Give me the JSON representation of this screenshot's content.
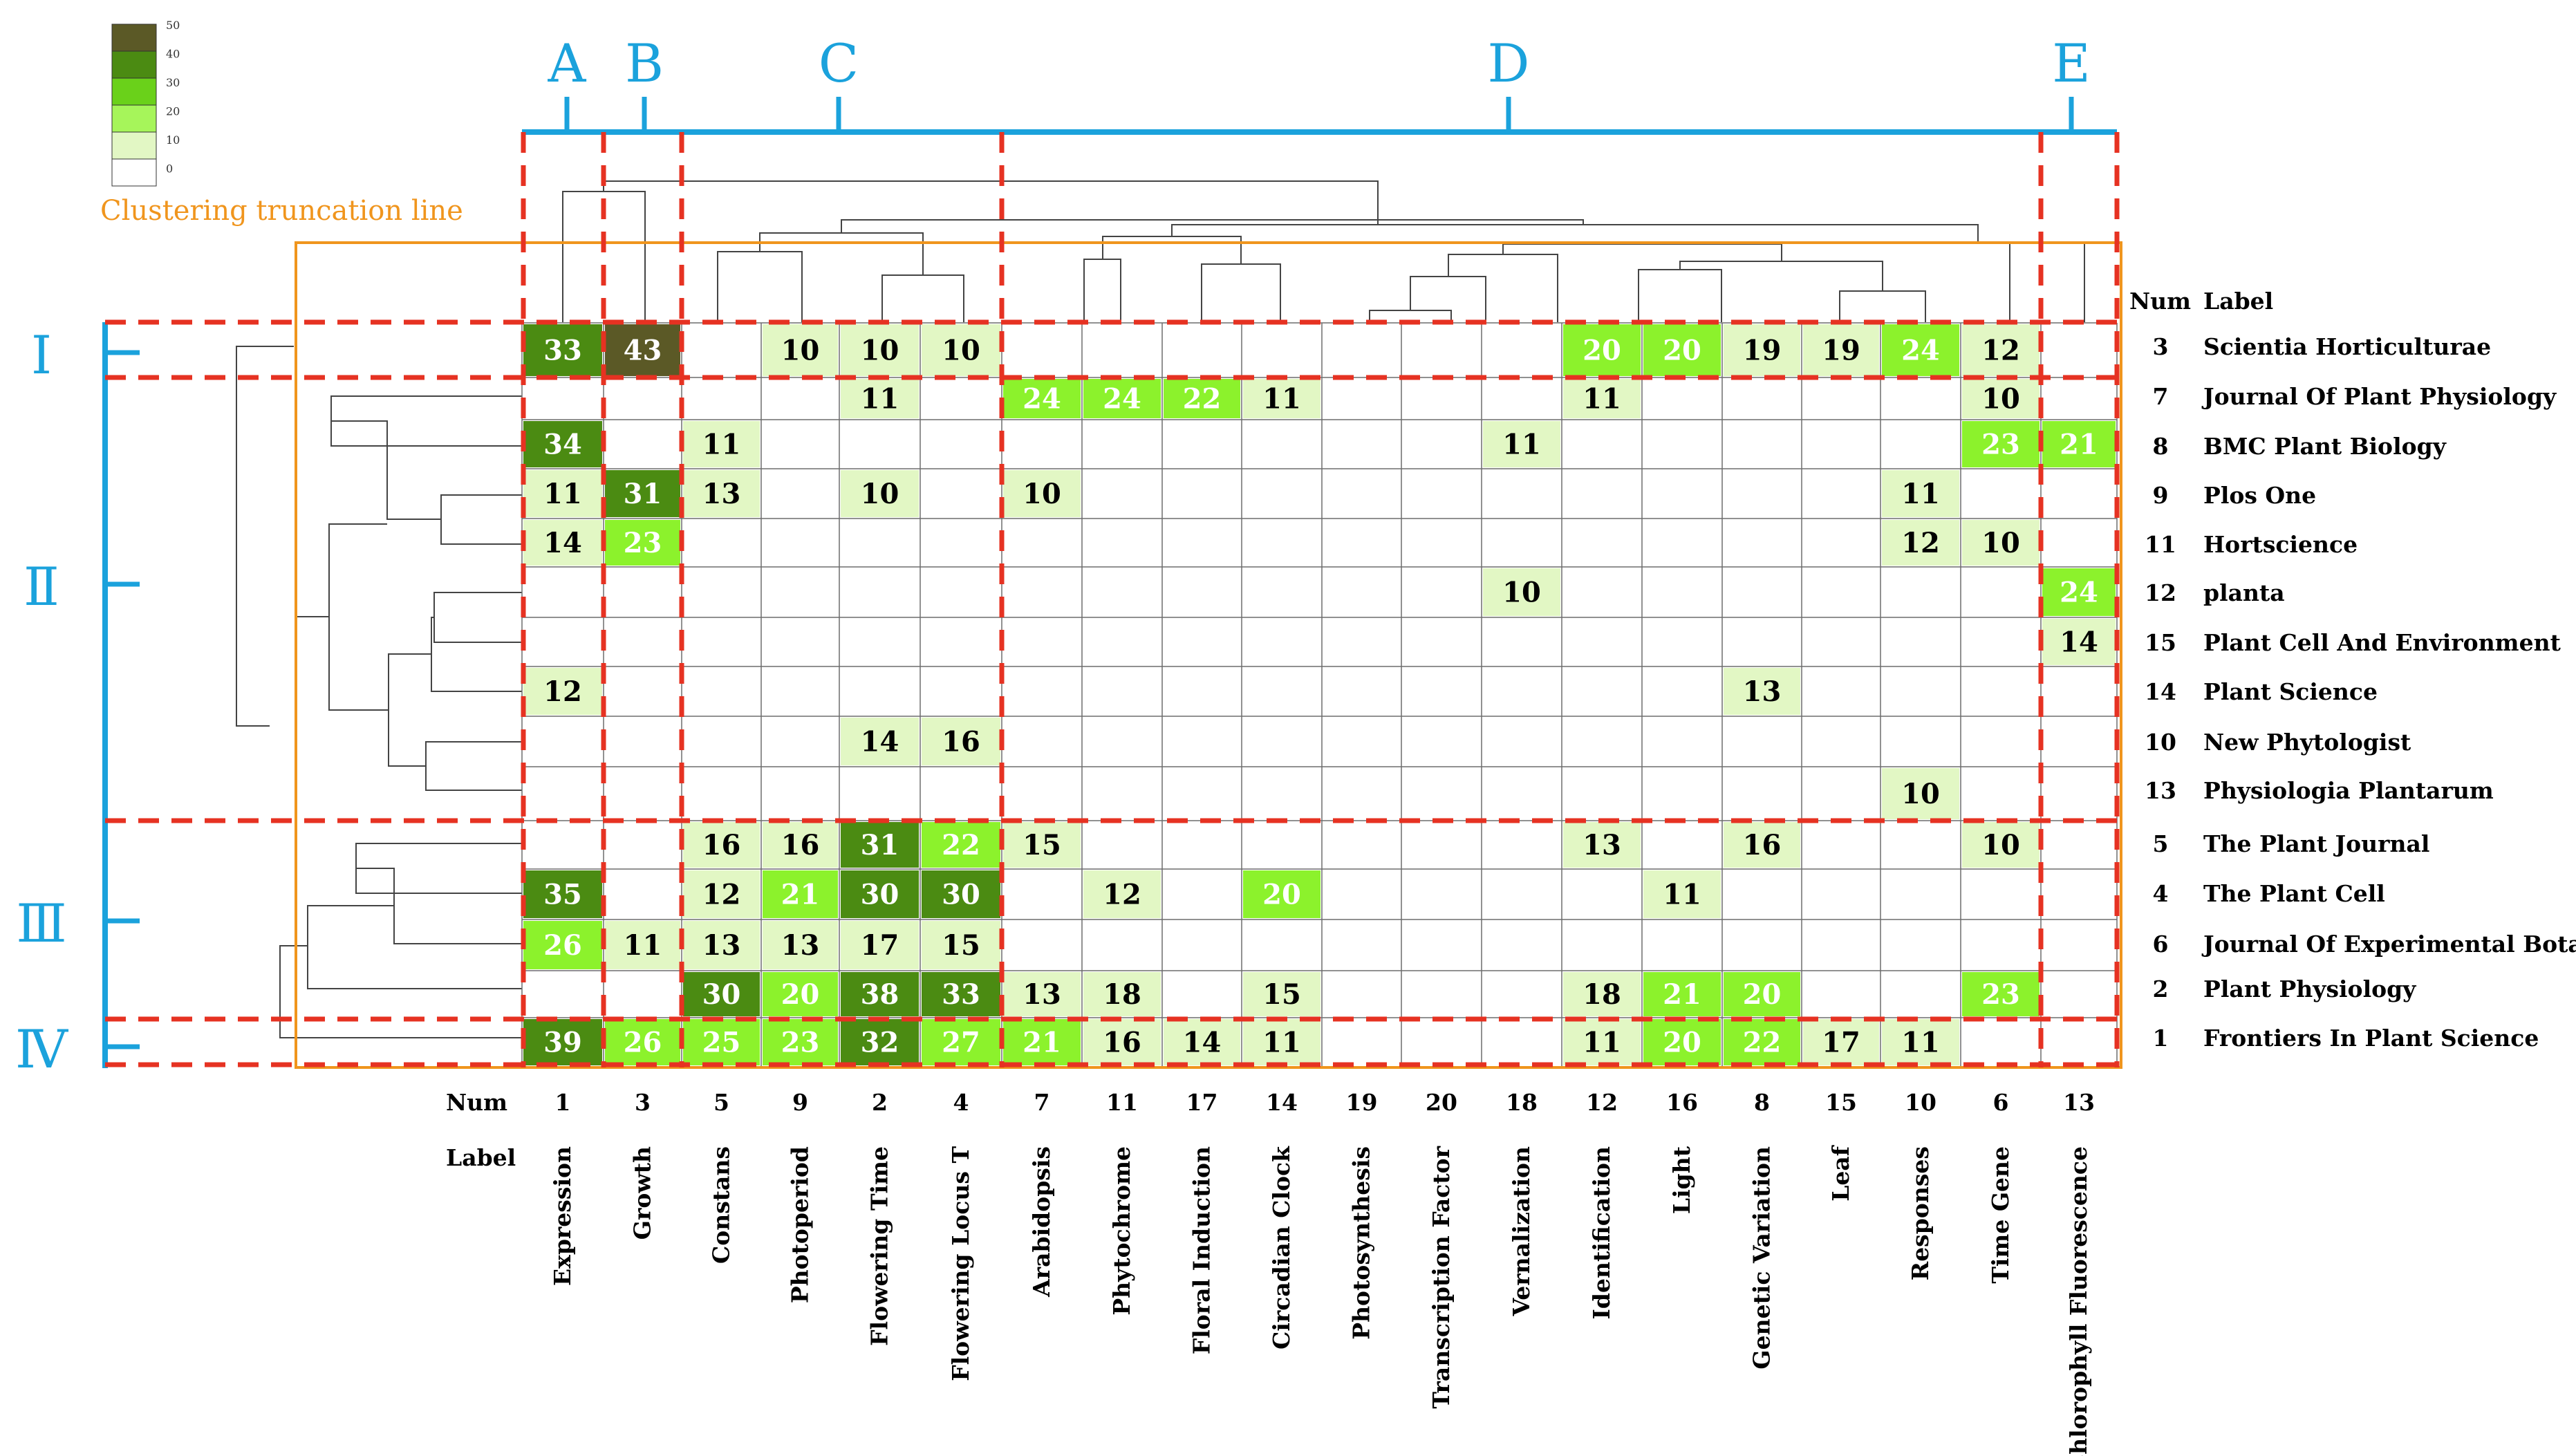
{
  "chart_data": {
    "type": "heatmap",
    "title": "",
    "truncation_label": "Clustering truncation line",
    "num_header": "Num",
    "label_header": "Label",
    "legend": {
      "ticks": [
        "50",
        "40",
        "30",
        "20",
        "10",
        "0"
      ]
    },
    "column_groups": [
      "A",
      "B",
      "C",
      "D",
      "E"
    ],
    "row_groups": [
      "Ⅰ",
      "Ⅱ",
      "Ⅲ",
      "Ⅳ"
    ],
    "columns": [
      {
        "num": "1",
        "label": "Expression"
      },
      {
        "num": "3",
        "label": "Growth"
      },
      {
        "num": "5",
        "label": "Constans"
      },
      {
        "num": "9",
        "label": "Photoperiod"
      },
      {
        "num": "2",
        "label": "Flowering Time"
      },
      {
        "num": "4",
        "label": "Flowering Locus T"
      },
      {
        "num": "7",
        "label": "Arabidopsis"
      },
      {
        "num": "11",
        "label": "Phytochrome"
      },
      {
        "num": "17",
        "label": "Floral Induction"
      },
      {
        "num": "14",
        "label": "Circadian Clock"
      },
      {
        "num": "19",
        "label": "Photosynthesis"
      },
      {
        "num": "20",
        "label": "Transcription Factor"
      },
      {
        "num": "18",
        "label": "Vernalization"
      },
      {
        "num": "12",
        "label": "Identification"
      },
      {
        "num": "16",
        "label": "Light"
      },
      {
        "num": "8",
        "label": "Genetic Variation"
      },
      {
        "num": "15",
        "label": "Leaf"
      },
      {
        "num": "10",
        "label": "Responses"
      },
      {
        "num": "6",
        "label": "Time Gene"
      },
      {
        "num": "13",
        "label": "Chlorophyll Fluorescence"
      }
    ],
    "rows": [
      {
        "num": "3",
        "label": "Scientia Horticulturae"
      },
      {
        "num": "7",
        "label": "Journal Of Plant Physiology"
      },
      {
        "num": "8",
        "label": "BMC Plant Biology"
      },
      {
        "num": "9",
        "label": "Plos One"
      },
      {
        "num": "11",
        "label": "Hortscience"
      },
      {
        "num": "12",
        "label": "planta"
      },
      {
        "num": "15",
        "label": "Plant Cell And Environment"
      },
      {
        "num": "14",
        "label": "Plant Science"
      },
      {
        "num": "10",
        "label": "New Phytologist"
      },
      {
        "num": "13",
        "label": "Physiologia Plantarum"
      },
      {
        "num": "5",
        "label": "The Plant Journal"
      },
      {
        "num": "4",
        "label": "The Plant Cell"
      },
      {
        "num": "6",
        "label": "Journal Of Experimental Botany"
      },
      {
        "num": "2",
        "label": "Plant Physiology"
      },
      {
        "num": "1",
        "label": "Frontiers In Plant Science"
      }
    ],
    "values": [
      [
        33,
        43,
        null,
        10,
        10,
        10,
        null,
        null,
        null,
        null,
        null,
        null,
        null,
        20,
        20,
        19,
        19,
        24,
        12,
        null
      ],
      [
        null,
        null,
        null,
        null,
        11,
        null,
        24,
        24,
        22,
        11,
        null,
        null,
        null,
        11,
        null,
        null,
        null,
        null,
        10,
        null
      ],
      [
        34,
        null,
        11,
        null,
        null,
        null,
        null,
        null,
        null,
        null,
        null,
        null,
        11,
        null,
        null,
        null,
        null,
        null,
        23,
        21
      ],
      [
        11,
        31,
        13,
        null,
        10,
        null,
        10,
        null,
        null,
        null,
        null,
        null,
        null,
        null,
        null,
        null,
        null,
        11,
        null,
        null
      ],
      [
        14,
        23,
        null,
        null,
        null,
        null,
        null,
        null,
        null,
        null,
        null,
        null,
        null,
        null,
        null,
        null,
        null,
        12,
        10,
        null
      ],
      [
        null,
        null,
        null,
        null,
        null,
        null,
        null,
        null,
        null,
        null,
        null,
        null,
        10,
        null,
        null,
        null,
        null,
        null,
        null,
        24
      ],
      [
        null,
        null,
        null,
        null,
        null,
        null,
        null,
        null,
        null,
        null,
        null,
        null,
        null,
        null,
        null,
        null,
        null,
        null,
        null,
        14
      ],
      [
        12,
        null,
        null,
        null,
        null,
        null,
        null,
        null,
        null,
        null,
        null,
        null,
        null,
        null,
        null,
        13,
        null,
        null,
        null,
        null
      ],
      [
        null,
        null,
        null,
        null,
        14,
        16,
        null,
        null,
        null,
        null,
        null,
        null,
        null,
        null,
        null,
        null,
        null,
        null,
        null,
        null
      ],
      [
        null,
        null,
        null,
        null,
        null,
        null,
        null,
        null,
        null,
        null,
        null,
        null,
        null,
        null,
        null,
        null,
        null,
        10,
        null,
        null
      ],
      [
        null,
        null,
        16,
        16,
        31,
        22,
        15,
        null,
        null,
        null,
        null,
        null,
        null,
        13,
        null,
        16,
        null,
        null,
        10,
        null
      ],
      [
        35,
        null,
        12,
        21,
        30,
        30,
        null,
        12,
        null,
        20,
        null,
        null,
        null,
        null,
        11,
        null,
        null,
        null,
        null,
        null
      ],
      [
        26,
        11,
        13,
        13,
        17,
        15,
        null,
        null,
        null,
        null,
        null,
        null,
        null,
        null,
        null,
        null,
        null,
        null,
        null,
        null
      ],
      [
        null,
        null,
        30,
        20,
        38,
        33,
        13,
        18,
        null,
        15,
        null,
        null,
        null,
        18,
        21,
        20,
        null,
        null,
        23,
        null
      ],
      [
        39,
        26,
        25,
        23,
        32,
        27,
        21,
        16,
        14,
        11,
        null,
        null,
        null,
        11,
        20,
        22,
        17,
        11,
        null,
        null
      ]
    ],
    "colors": {
      "bin_0_10": "#ffffff",
      "bin_10_20": "#e2f7c4",
      "bin_20_30": "#8cf22c",
      "bin_30_40": "#4b8b12",
      "bin_40_50": "#5b5926",
      "grid": "#6d6d6d",
      "group_line": "#1ba2dc",
      "dash": "#e63222",
      "truncation": "#f0951d"
    }
  }
}
